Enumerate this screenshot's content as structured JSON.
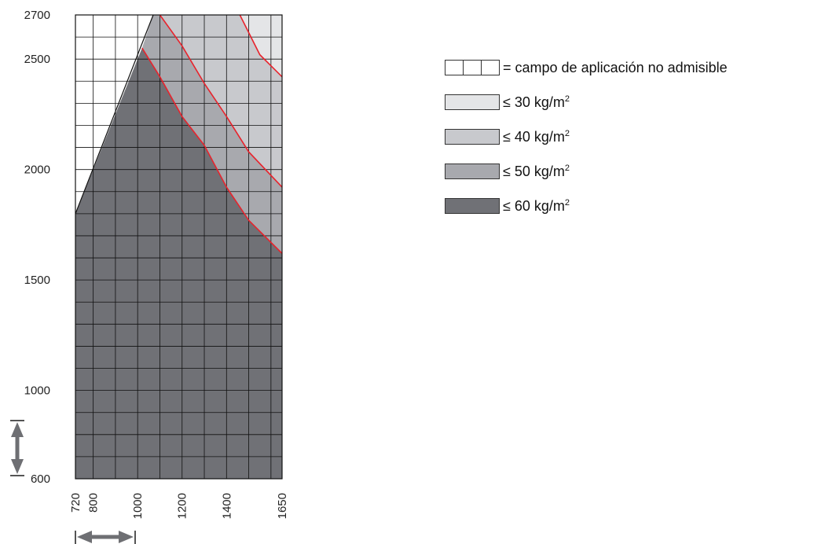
{
  "chart_data": {
    "type": "area",
    "x_ticks": [
      720,
      800,
      1000,
      1200,
      1400,
      1650
    ],
    "y_ticks": [
      600,
      1000,
      1500,
      2000,
      2500,
      2700
    ],
    "xlim": [
      720,
      1650
    ],
    "ylim": [
      600,
      2700
    ],
    "grid": true,
    "admissible_boundary": [
      [
        720,
        1800
      ],
      [
        1070,
        2700
      ]
    ],
    "bands": [
      {
        "label": "≤ 30 kg/m²",
        "color": "#e4e5e7"
      },
      {
        "label": "≤ 40 kg/m²",
        "color": "#c8c9cd"
      },
      {
        "label": "≤ 50 kg/m²",
        "color": "#a8a9ae"
      },
      {
        "label": "≤ 60 kg/m²",
        "color": "#707176"
      }
    ],
    "curves": [
      {
        "points": [
          [
            1020,
            2550
          ],
          [
            1100,
            2420
          ],
          [
            1200,
            2240
          ],
          [
            1300,
            2110
          ],
          [
            1400,
            1920
          ],
          [
            1500,
            1770
          ],
          [
            1650,
            1620
          ]
        ]
      },
      {
        "points": [
          [
            1100,
            2700
          ],
          [
            1200,
            2560
          ],
          [
            1300,
            2390
          ],
          [
            1400,
            2240
          ],
          [
            1500,
            2080
          ],
          [
            1650,
            1920
          ]
        ]
      },
      {
        "points": [
          [
            1460,
            2700
          ],
          [
            1550,
            2520
          ],
          [
            1650,
            2420
          ]
        ]
      }
    ],
    "curve_color": "#e8232c"
  },
  "legend": {
    "items": [
      {
        "kind": "grid",
        "text": "= campo de aplicación no admisible",
        "sup": ""
      },
      {
        "kind": "band",
        "color": "#e4e5e7",
        "text": "≤ 30 kg/m",
        "sup": "2"
      },
      {
        "kind": "band",
        "color": "#c8c9cd",
        "text": "≤ 40 kg/m",
        "sup": "2"
      },
      {
        "kind": "band",
        "color": "#a8a9ae",
        "text": "≤ 50 kg/m",
        "sup": "2"
      },
      {
        "kind": "band",
        "color": "#707176",
        "text": "≤ 60 kg/m",
        "sup": "2"
      }
    ]
  },
  "icons": {
    "vertical": "double-arrow-vertical-icon",
    "horizontal": "double-arrow-horizontal-icon",
    "arrow_color": "#6e6f73"
  }
}
